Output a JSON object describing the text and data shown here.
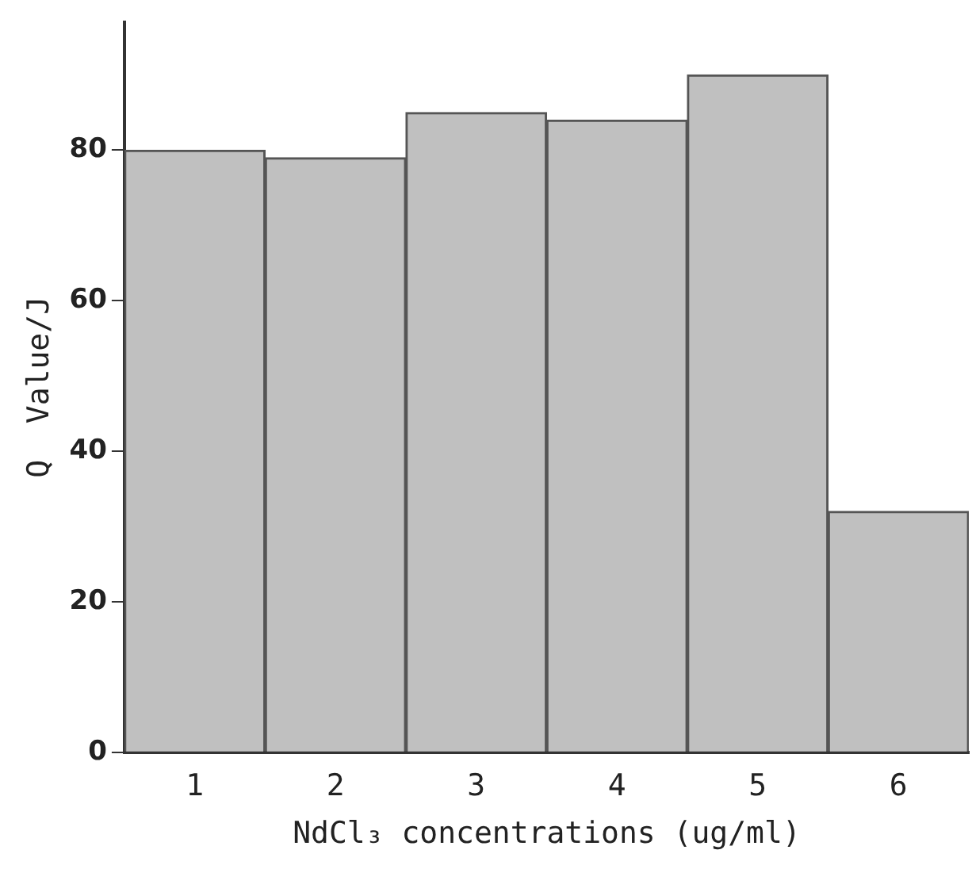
{
  "chart_data": {
    "type": "bar",
    "xlabel": "NdCl₃ concentrations (ug/ml)",
    "ylabel": "Q  Value/J",
    "categories": [
      "1",
      "2",
      "3",
      "4",
      "5",
      "6"
    ],
    "values": [
      80,
      79,
      85,
      84,
      90,
      32
    ],
    "color": "#c0c0c0",
    "ylim": [
      0,
      97
    ],
    "yticks": [
      0,
      20,
      40,
      60,
      80
    ],
    "grid": false,
    "legend": false
  }
}
